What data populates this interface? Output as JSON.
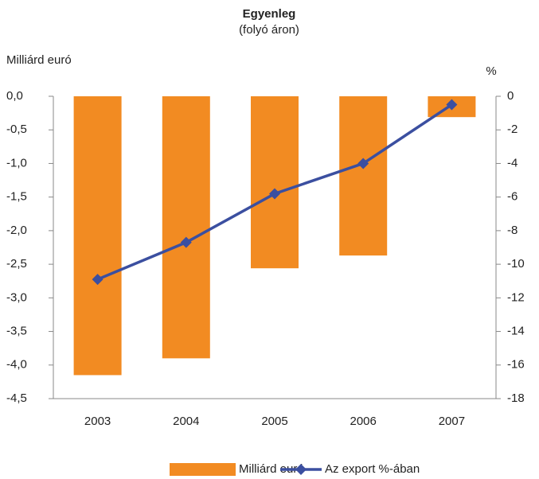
{
  "chart_data": {
    "type": "bar",
    "title": "Egyenleg",
    "subtitle": "(folyó áron)",
    "y_label": "Milliárd euró",
    "y2_label": "%",
    "categories": [
      "2003",
      "2004",
      "2005",
      "2006",
      "2007"
    ],
    "series": [
      {
        "name": "Milliárd euró",
        "type": "bar",
        "color": "#f28b22",
        "values": [
          -4.15,
          -3.9,
          -2.56,
          -2.37,
          -0.31
        ]
      },
      {
        "name": "Az export %-ában",
        "type": "line",
        "axis": "y2",
        "color": "#3b4fa0",
        "values": [
          -10.9,
          -8.7,
          -5.8,
          -4.0,
          -0.5
        ]
      }
    ],
    "ylim": [
      0,
      -4.5
    ],
    "yticks": [
      {
        "value": 0,
        "label": "0,0"
      },
      {
        "value": -0.5,
        "label": "-0,5"
      },
      {
        "value": -1,
        "label": "-1,0"
      },
      {
        "value": -1.5,
        "label": "-1,5"
      },
      {
        "value": -2,
        "label": "-2,0"
      },
      {
        "value": -2.5,
        "label": "-2,5"
      },
      {
        "value": -3,
        "label": "-3,0"
      },
      {
        "value": -3.5,
        "label": "-3,5"
      },
      {
        "value": -4,
        "label": "-4,0"
      },
      {
        "value": -4.5,
        "label": "-4,5"
      }
    ],
    "y2lim": [
      0,
      -18
    ],
    "y2ticks": [
      0,
      -2,
      -4,
      -6,
      -8,
      -10,
      -12,
      -14,
      -16,
      -18
    ],
    "grid": false,
    "legend": "bottom"
  }
}
